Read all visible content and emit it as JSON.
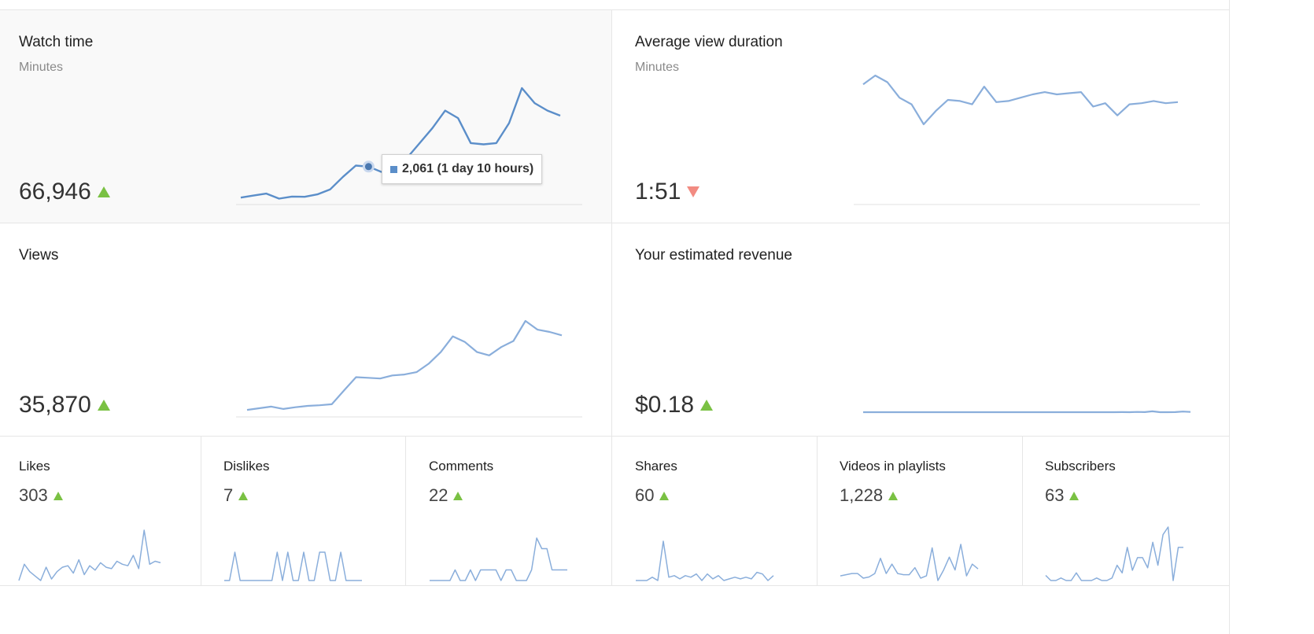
{
  "colors": {
    "line_primary": "#5b8ec9",
    "line_secondary": "#8aaedb",
    "up": "#7ac143",
    "down": "#f28b82",
    "baseline": "#e0e0e0"
  },
  "cards": {
    "watch_time": {
      "title": "Watch time",
      "subtitle": "Minutes",
      "value": "66,946",
      "trend": "up",
      "tooltip": "2,061 (1 day 10 hours)"
    },
    "avg_view_duration": {
      "title": "Average view duration",
      "subtitle": "Minutes",
      "value": "1:51",
      "trend": "down"
    },
    "views": {
      "title": "Views",
      "value": "35,870",
      "trend": "up"
    },
    "revenue": {
      "title": "Your estimated revenue",
      "value": "$0.18",
      "trend": "up"
    }
  },
  "small_cards": [
    {
      "title": "Likes",
      "value": "303",
      "trend": "up"
    },
    {
      "title": "Dislikes",
      "value": "7",
      "trend": "up"
    },
    {
      "title": "Comments",
      "value": "22",
      "trend": "up"
    },
    {
      "title": "Shares",
      "value": "60",
      "trend": "up"
    },
    {
      "title": "Videos in playlists",
      "value": "1,228",
      "trend": "up"
    },
    {
      "title": "Subscribers",
      "value": "63",
      "trend": "up"
    }
  ],
  "chart_data": [
    {
      "type": "line",
      "name": "watch_time",
      "values": [
        820,
        900,
        980,
        780,
        860,
        850,
        950,
        1150,
        1650,
        2100,
        2061,
        1850,
        2000,
        2400,
        3000,
        3600,
        4300,
        4000,
        3000,
        2950,
        3000,
        3800,
        5200,
        4600,
        4300,
        4100
      ],
      "highlight_index": 10
    },
    {
      "type": "line",
      "name": "avg_view_duration",
      "values": [
        1.93,
        1.97,
        1.94,
        1.87,
        1.84,
        1.75,
        1.81,
        1.86,
        1.855,
        1.84,
        1.92,
        1.85,
        1.855,
        1.87,
        1.885,
        1.895,
        1.885,
        1.89,
        1.895,
        1.83,
        1.845,
        1.79,
        1.84,
        1.845,
        1.855,
        1.845,
        1.85
      ]
    },
    {
      "type": "line",
      "name": "views",
      "values": [
        420,
        470,
        520,
        450,
        500,
        540,
        560,
        590,
        1000,
        1400,
        1380,
        1360,
        1450,
        1480,
        1550,
        1800,
        2150,
        2620,
        2450,
        2150,
        2050,
        2300,
        2480,
        3080,
        2820,
        2750,
        2650
      ]
    },
    {
      "type": "line",
      "name": "revenue",
      "values": [
        0,
        0,
        0,
        0,
        0,
        0,
        0,
        0,
        0,
        0,
        0,
        0,
        0,
        0,
        0,
        0,
        0,
        0,
        0,
        0,
        0,
        0,
        0,
        0,
        0,
        0,
        0,
        0,
        0,
        0,
        0,
        0,
        0,
        0,
        0.001,
        0,
        0.002,
        0.001,
        0.008,
        0,
        0,
        0.001,
        0.006,
        0.002
      ]
    },
    {
      "type": "line",
      "name": "likes",
      "values": [
        1,
        12,
        7,
        4,
        1,
        10,
        2,
        7,
        10,
        11,
        6,
        15,
        5,
        11,
        8,
        13,
        10,
        9,
        14,
        12,
        11,
        18,
        9,
        35,
        12,
        14,
        13
      ]
    },
    {
      "type": "line",
      "name": "dislikes",
      "values": [
        0,
        0,
        1,
        0,
        0,
        0,
        0,
        0,
        0,
        0,
        1,
        0,
        1,
        0,
        0,
        1,
        0,
        0,
        1,
        1,
        0,
        0,
        1,
        0,
        0,
        0,
        0
      ]
    },
    {
      "type": "line",
      "name": "comments",
      "values": [
        0,
        0,
        0,
        0,
        0,
        1,
        0,
        0,
        1,
        0,
        1,
        1,
        1,
        1,
        0,
        1,
        1,
        0,
        0,
        0,
        1,
        4,
        3,
        3,
        1,
        1,
        1,
        1
      ]
    },
    {
      "type": "line",
      "name": "shares",
      "values": [
        0,
        0,
        0,
        2,
        0,
        24,
        2,
        3,
        1,
        3,
        2,
        4,
        0,
        4,
        1,
        3,
        0,
        1,
        2,
        1,
        2,
        1,
        5,
        4,
        0,
        3
      ]
    },
    {
      "type": "line",
      "name": "videos_in_playlists",
      "values": [
        20,
        21,
        22,
        22,
        18,
        19,
        22,
        35,
        22,
        30,
        22,
        21,
        21,
        27,
        18,
        20,
        44,
        16,
        25,
        36,
        25,
        47,
        20,
        30,
        26
      ]
    },
    {
      "type": "line",
      "name": "subscribers",
      "values": [
        2,
        0,
        0,
        1,
        0,
        0,
        3,
        0,
        0,
        0,
        1,
        0,
        0,
        1,
        6,
        3,
        13,
        4,
        9,
        9,
        5,
        15,
        6,
        18,
        21,
        0,
        13,
        13
      ]
    }
  ]
}
